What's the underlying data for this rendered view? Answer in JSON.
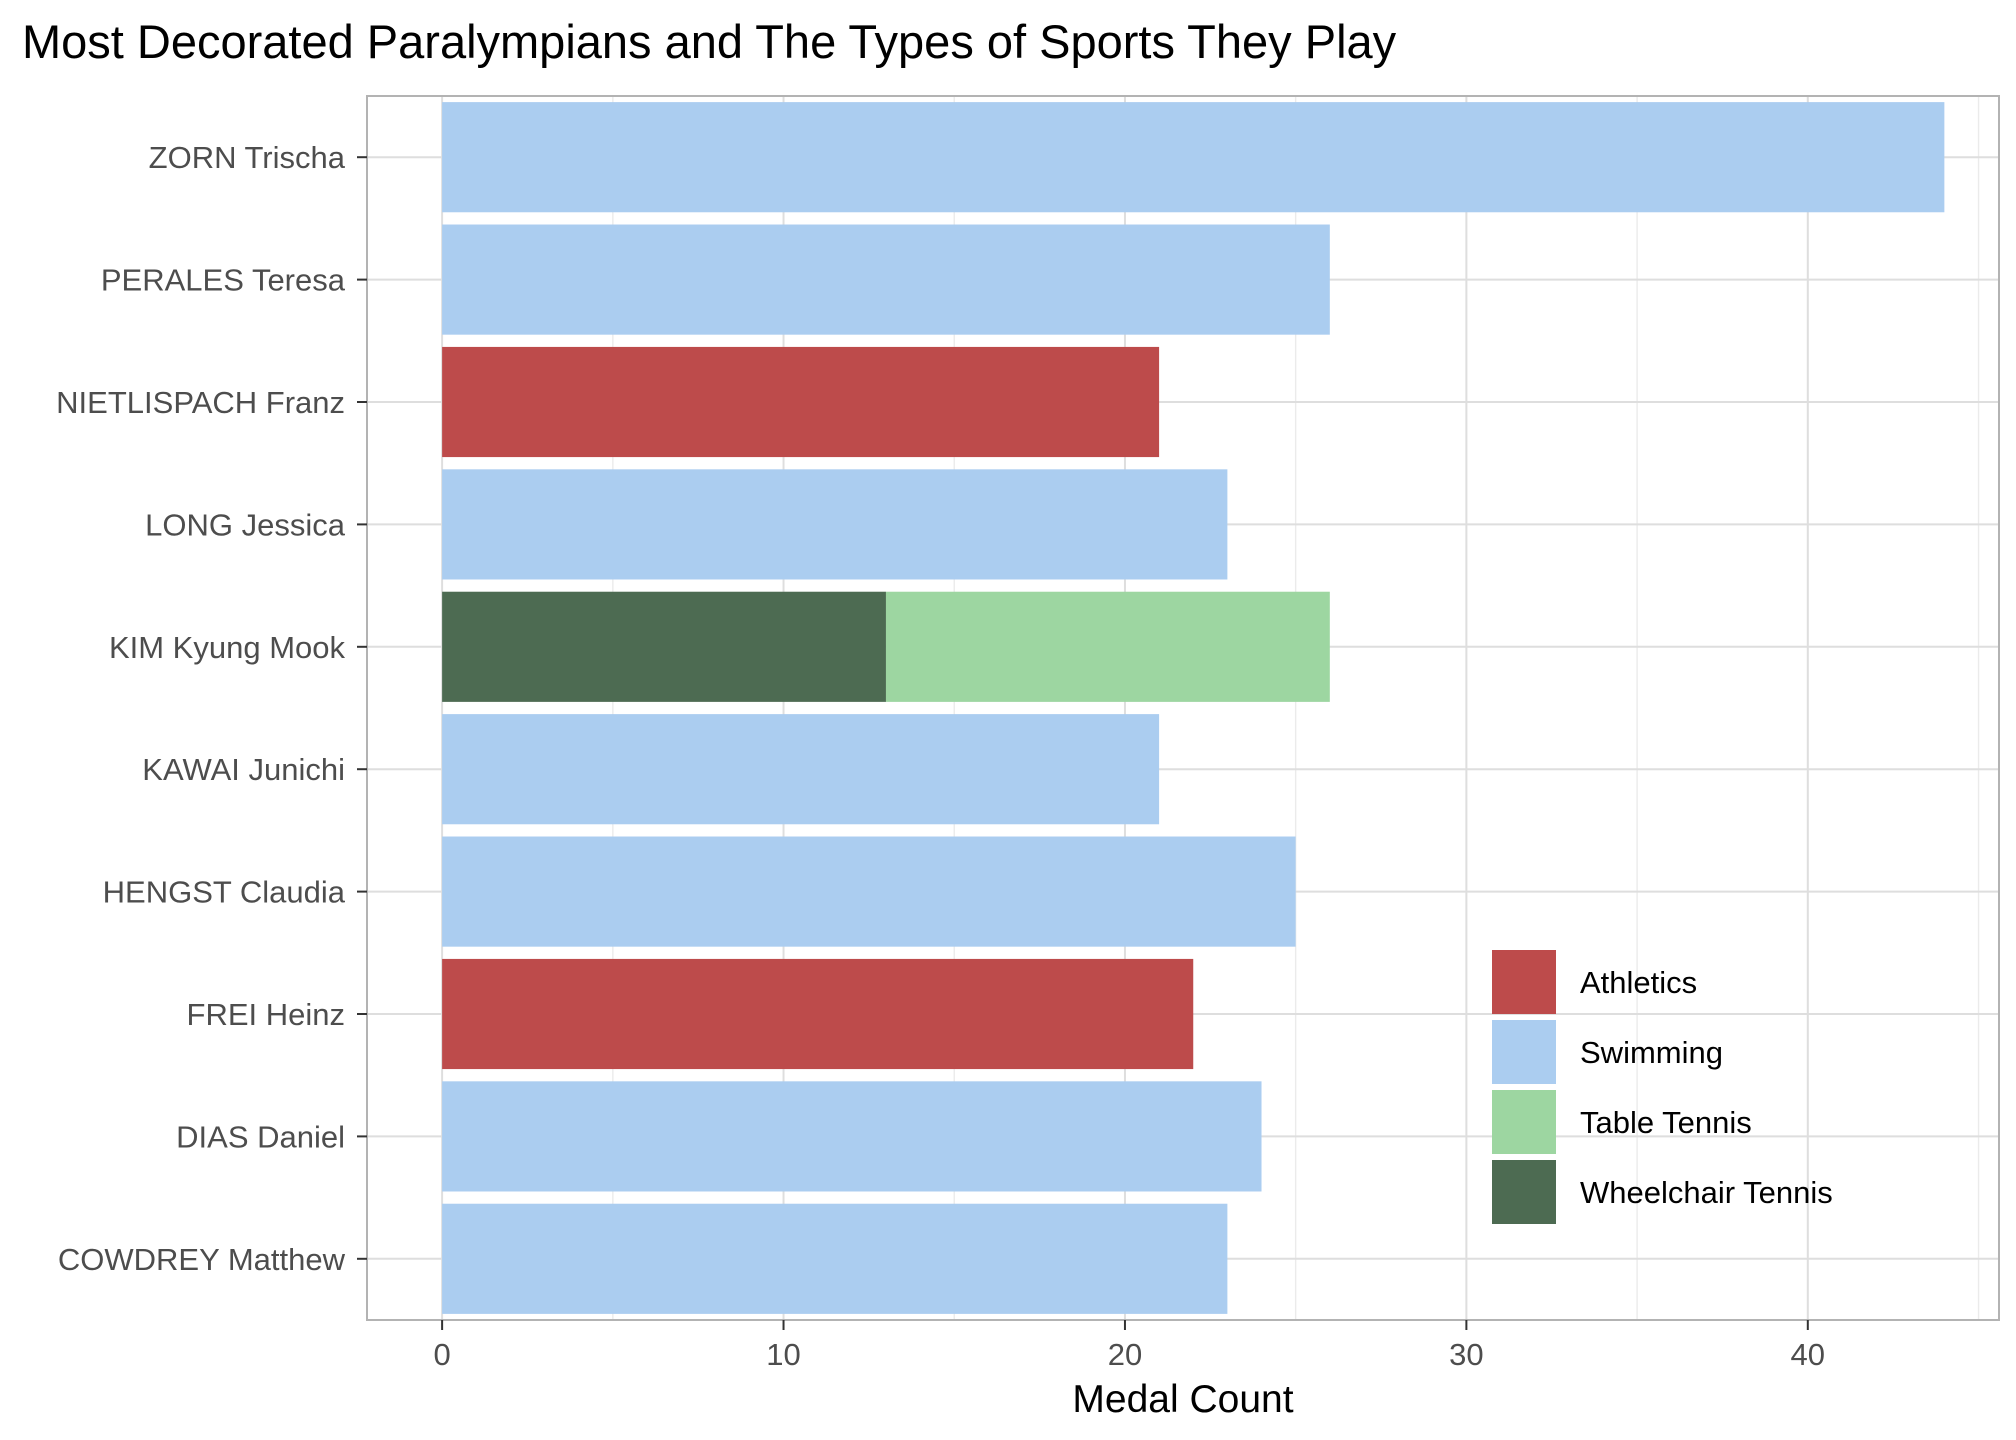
{
  "chart_data": {
    "type": "bar",
    "orientation": "horizontal",
    "stacked": true,
    "title": "Most Decorated Paralympians and The Types of Sports They Play",
    "xlabel": "Medal Count",
    "ylabel": "",
    "xlim": [
      0,
      45
    ],
    "xticks": [
      0,
      10,
      20,
      30,
      40
    ],
    "grid": true,
    "legend_position": "bottom-right",
    "categories": [
      "ZORN Trischa",
      "PERALES Teresa",
      "NIETLISPACH Franz",
      "LONG Jessica",
      "KIM Kyung Mook",
      "KAWAI Junichi",
      "HENGST Claudia",
      "FREI Heinz",
      "DIAS Daniel",
      "COWDREY Matthew"
    ],
    "series": [
      {
        "name": "Athletics",
        "color": "#bd4b4b",
        "values": [
          0,
          0,
          21,
          0,
          0,
          0,
          0,
          22,
          0,
          0
        ]
      },
      {
        "name": "Swimming",
        "color": "#abcdf0",
        "values": [
          44,
          26,
          0,
          23,
          0,
          21,
          25,
          0,
          24,
          23
        ]
      },
      {
        "name": "Table Tennis",
        "color": "#9dd6a1",
        "values": [
          0,
          0,
          0,
          0,
          13,
          0,
          0,
          0,
          0,
          0
        ]
      },
      {
        "name": "Wheelchair Tennis",
        "color": "#4d6b52",
        "values": [
          0,
          0,
          0,
          0,
          13,
          0,
          0,
          0,
          0,
          0
        ]
      }
    ],
    "stack_order": [
      "Wheelchair Tennis",
      "Athletics",
      "Swimming",
      "Table Tennis"
    ]
  }
}
